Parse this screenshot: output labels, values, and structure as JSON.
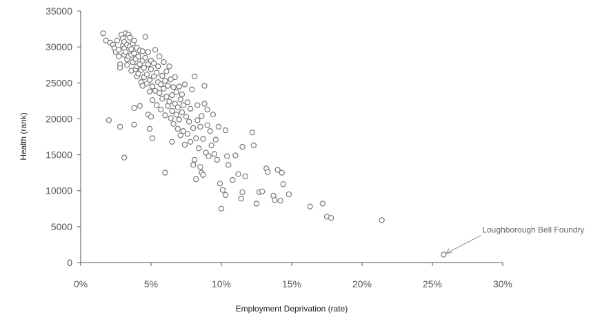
{
  "chart_data": {
    "type": "scatter",
    "xlabel": "Employment Deprivation (rate)",
    "ylabel": "Health (rank)",
    "xlim": [
      0,
      0.3
    ],
    "ylim": [
      0,
      35000
    ],
    "x_ticks": [
      0,
      0.05,
      0.1,
      0.15,
      0.2,
      0.25,
      0.3
    ],
    "x_tick_labels": [
      "0%",
      "5%",
      "10%",
      "15%",
      "20%",
      "25%",
      "30%"
    ],
    "y_ticks": [
      0,
      5000,
      10000,
      15000,
      20000,
      25000,
      30000,
      35000
    ],
    "y_tick_labels": [
      "0",
      "5000",
      "10000",
      "15000",
      "20000",
      "25000",
      "30000",
      "35000"
    ],
    "grid": false,
    "legend": "none",
    "marker_color": "#777777",
    "annotation": {
      "text": "Loughborough Bell Foundry",
      "x": 0.258,
      "y": 1100
    },
    "points": [
      [
        0.016,
        31900
      ],
      [
        0.018,
        30900
      ],
      [
        0.021,
        30600
      ],
      [
        0.023,
        30300
      ],
      [
        0.024,
        29800
      ],
      [
        0.025,
        29300
      ],
      [
        0.026,
        30900
      ],
      [
        0.027,
        29600
      ],
      [
        0.027,
        28700
      ],
      [
        0.028,
        27600
      ],
      [
        0.028,
        27100
      ],
      [
        0.029,
        31700
      ],
      [
        0.03,
        30200
      ],
      [
        0.03,
        31200
      ],
      [
        0.031,
        28900
      ],
      [
        0.031,
        29800
      ],
      [
        0.031,
        30700
      ],
      [
        0.032,
        31900
      ],
      [
        0.032,
        29300
      ],
      [
        0.033,
        30300
      ],
      [
        0.033,
        28300
      ],
      [
        0.033,
        27500
      ],
      [
        0.034,
        31700
      ],
      [
        0.034,
        28700
      ],
      [
        0.035,
        30100
      ],
      [
        0.035,
        31300
      ],
      [
        0.036,
        28900
      ],
      [
        0.036,
        29700
      ],
      [
        0.036,
        26700
      ],
      [
        0.037,
        30500
      ],
      [
        0.037,
        27900
      ],
      [
        0.038,
        29100
      ],
      [
        0.038,
        30900
      ],
      [
        0.039,
        26900
      ],
      [
        0.039,
        28300
      ],
      [
        0.04,
        29900
      ],
      [
        0.04,
        27300
      ],
      [
        0.04,
        25900
      ],
      [
        0.041,
        28700
      ],
      [
        0.041,
        26300
      ],
      [
        0.042,
        29500
      ],
      [
        0.042,
        27600
      ],
      [
        0.043,
        25100
      ],
      [
        0.043,
        26800
      ],
      [
        0.044,
        28100
      ],
      [
        0.044,
        29400
      ],
      [
        0.044,
        24600
      ],
      [
        0.045,
        27100
      ],
      [
        0.045,
        25800
      ],
      [
        0.046,
        31400
      ],
      [
        0.046,
        28500
      ],
      [
        0.047,
        26200
      ],
      [
        0.047,
        24900
      ],
      [
        0.048,
        27600
      ],
      [
        0.048,
        29300
      ],
      [
        0.049,
        25400
      ],
      [
        0.049,
        23800
      ],
      [
        0.05,
        26900
      ],
      [
        0.05,
        28100
      ],
      [
        0.051,
        24500
      ],
      [
        0.051,
        22600
      ],
      [
        0.052,
        25900
      ],
      [
        0.052,
        27700
      ],
      [
        0.053,
        23900
      ],
      [
        0.053,
        29600
      ],
      [
        0.054,
        26400
      ],
      [
        0.054,
        21900
      ],
      [
        0.055,
        25100
      ],
      [
        0.055,
        27300
      ],
      [
        0.056,
        23600
      ],
      [
        0.056,
        28700
      ],
      [
        0.057,
        24800
      ],
      [
        0.057,
        21300
      ],
      [
        0.058,
        26000
      ],
      [
        0.058,
        22800
      ],
      [
        0.059,
        24200
      ],
      [
        0.059,
        27900
      ],
      [
        0.06,
        25300
      ],
      [
        0.06,
        20500
      ],
      [
        0.061,
        23100
      ],
      [
        0.061,
        26600
      ],
      [
        0.062,
        21800
      ],
      [
        0.062,
        24600
      ],
      [
        0.063,
        22400
      ],
      [
        0.063,
        27300
      ],
      [
        0.064,
        20100
      ],
      [
        0.064,
        25500
      ],
      [
        0.065,
        23300
      ],
      [
        0.065,
        21100
      ],
      [
        0.066,
        24400
      ],
      [
        0.066,
        19300
      ],
      [
        0.067,
        22100
      ],
      [
        0.067,
        25800
      ],
      [
        0.068,
        20600
      ],
      [
        0.068,
        23700
      ],
      [
        0.069,
        18600
      ],
      [
        0.069,
        21600
      ],
      [
        0.07,
        24500
      ],
      [
        0.07,
        19900
      ],
      [
        0.071,
        22700
      ],
      [
        0.071,
        17700
      ],
      [
        0.072,
        20900
      ],
      [
        0.072,
        23400
      ],
      [
        0.073,
        18300
      ],
      [
        0.073,
        21900
      ],
      [
        0.074,
        16400
      ],
      [
        0.074,
        24800
      ],
      [
        0.075,
        20300
      ],
      [
        0.076,
        17900
      ],
      [
        0.076,
        22300
      ],
      [
        0.077,
        19600
      ],
      [
        0.078,
        16800
      ],
      [
        0.078,
        21400
      ],
      [
        0.079,
        24100
      ],
      [
        0.08,
        18700
      ],
      [
        0.08,
        13600
      ],
      [
        0.081,
        14300
      ],
      [
        0.081,
        25900
      ],
      [
        0.082,
        17300
      ],
      [
        0.082,
        11600
      ],
      [
        0.083,
        19800
      ],
      [
        0.083,
        21900
      ],
      [
        0.084,
        15900
      ],
      [
        0.085,
        13300
      ],
      [
        0.085,
        18900
      ],
      [
        0.086,
        12500
      ],
      [
        0.086,
        20400
      ],
      [
        0.087,
        12200
      ],
      [
        0.087,
        17200
      ],
      [
        0.088,
        24600
      ],
      [
        0.088,
        22100
      ],
      [
        0.089,
        15300
      ],
      [
        0.09,
        19100
      ],
      [
        0.09,
        21300
      ],
      [
        0.091,
        14800
      ],
      [
        0.092,
        18300
      ],
      [
        0.093,
        16300
      ],
      [
        0.094,
        20600
      ],
      [
        0.095,
        15100
      ],
      [
        0.096,
        17100
      ],
      [
        0.097,
        14300
      ],
      [
        0.098,
        18900
      ],
      [
        0.099,
        11000
      ],
      [
        0.1,
        7500
      ],
      [
        0.101,
        10100
      ],
      [
        0.103,
        18400
      ],
      [
        0.103,
        9400
      ],
      [
        0.104,
        14800
      ],
      [
        0.105,
        13600
      ],
      [
        0.108,
        11500
      ],
      [
        0.11,
        14900
      ],
      [
        0.112,
        12300
      ],
      [
        0.114,
        8900
      ],
      [
        0.115,
        16100
      ],
      [
        0.115,
        9800
      ],
      [
        0.117,
        12000
      ],
      [
        0.122,
        18100
      ],
      [
        0.123,
        16300
      ],
      [
        0.125,
        8200
      ],
      [
        0.127,
        9800
      ],
      [
        0.129,
        9900
      ],
      [
        0.132,
        13100
      ],
      [
        0.133,
        12600
      ],
      [
        0.137,
        9300
      ],
      [
        0.138,
        8700
      ],
      [
        0.14,
        12900
      ],
      [
        0.142,
        8600
      ],
      [
        0.143,
        12500
      ],
      [
        0.144,
        10900
      ],
      [
        0.148,
        9500
      ],
      [
        0.163,
        7800
      ],
      [
        0.172,
        8200
      ],
      [
        0.175,
        6400
      ],
      [
        0.178,
        6200
      ],
      [
        0.214,
        5900
      ],
      [
        0.02,
        19800
      ],
      [
        0.028,
        18900
      ],
      [
        0.031,
        14600
      ],
      [
        0.038,
        21500
      ],
      [
        0.038,
        19200
      ],
      [
        0.042,
        21800
      ],
      [
        0.048,
        20600
      ],
      [
        0.049,
        18600
      ],
      [
        0.05,
        20300
      ],
      [
        0.051,
        17300
      ],
      [
        0.06,
        12500
      ],
      [
        0.065,
        16800
      ],
      [
        0.258,
        1100
      ]
    ]
  }
}
